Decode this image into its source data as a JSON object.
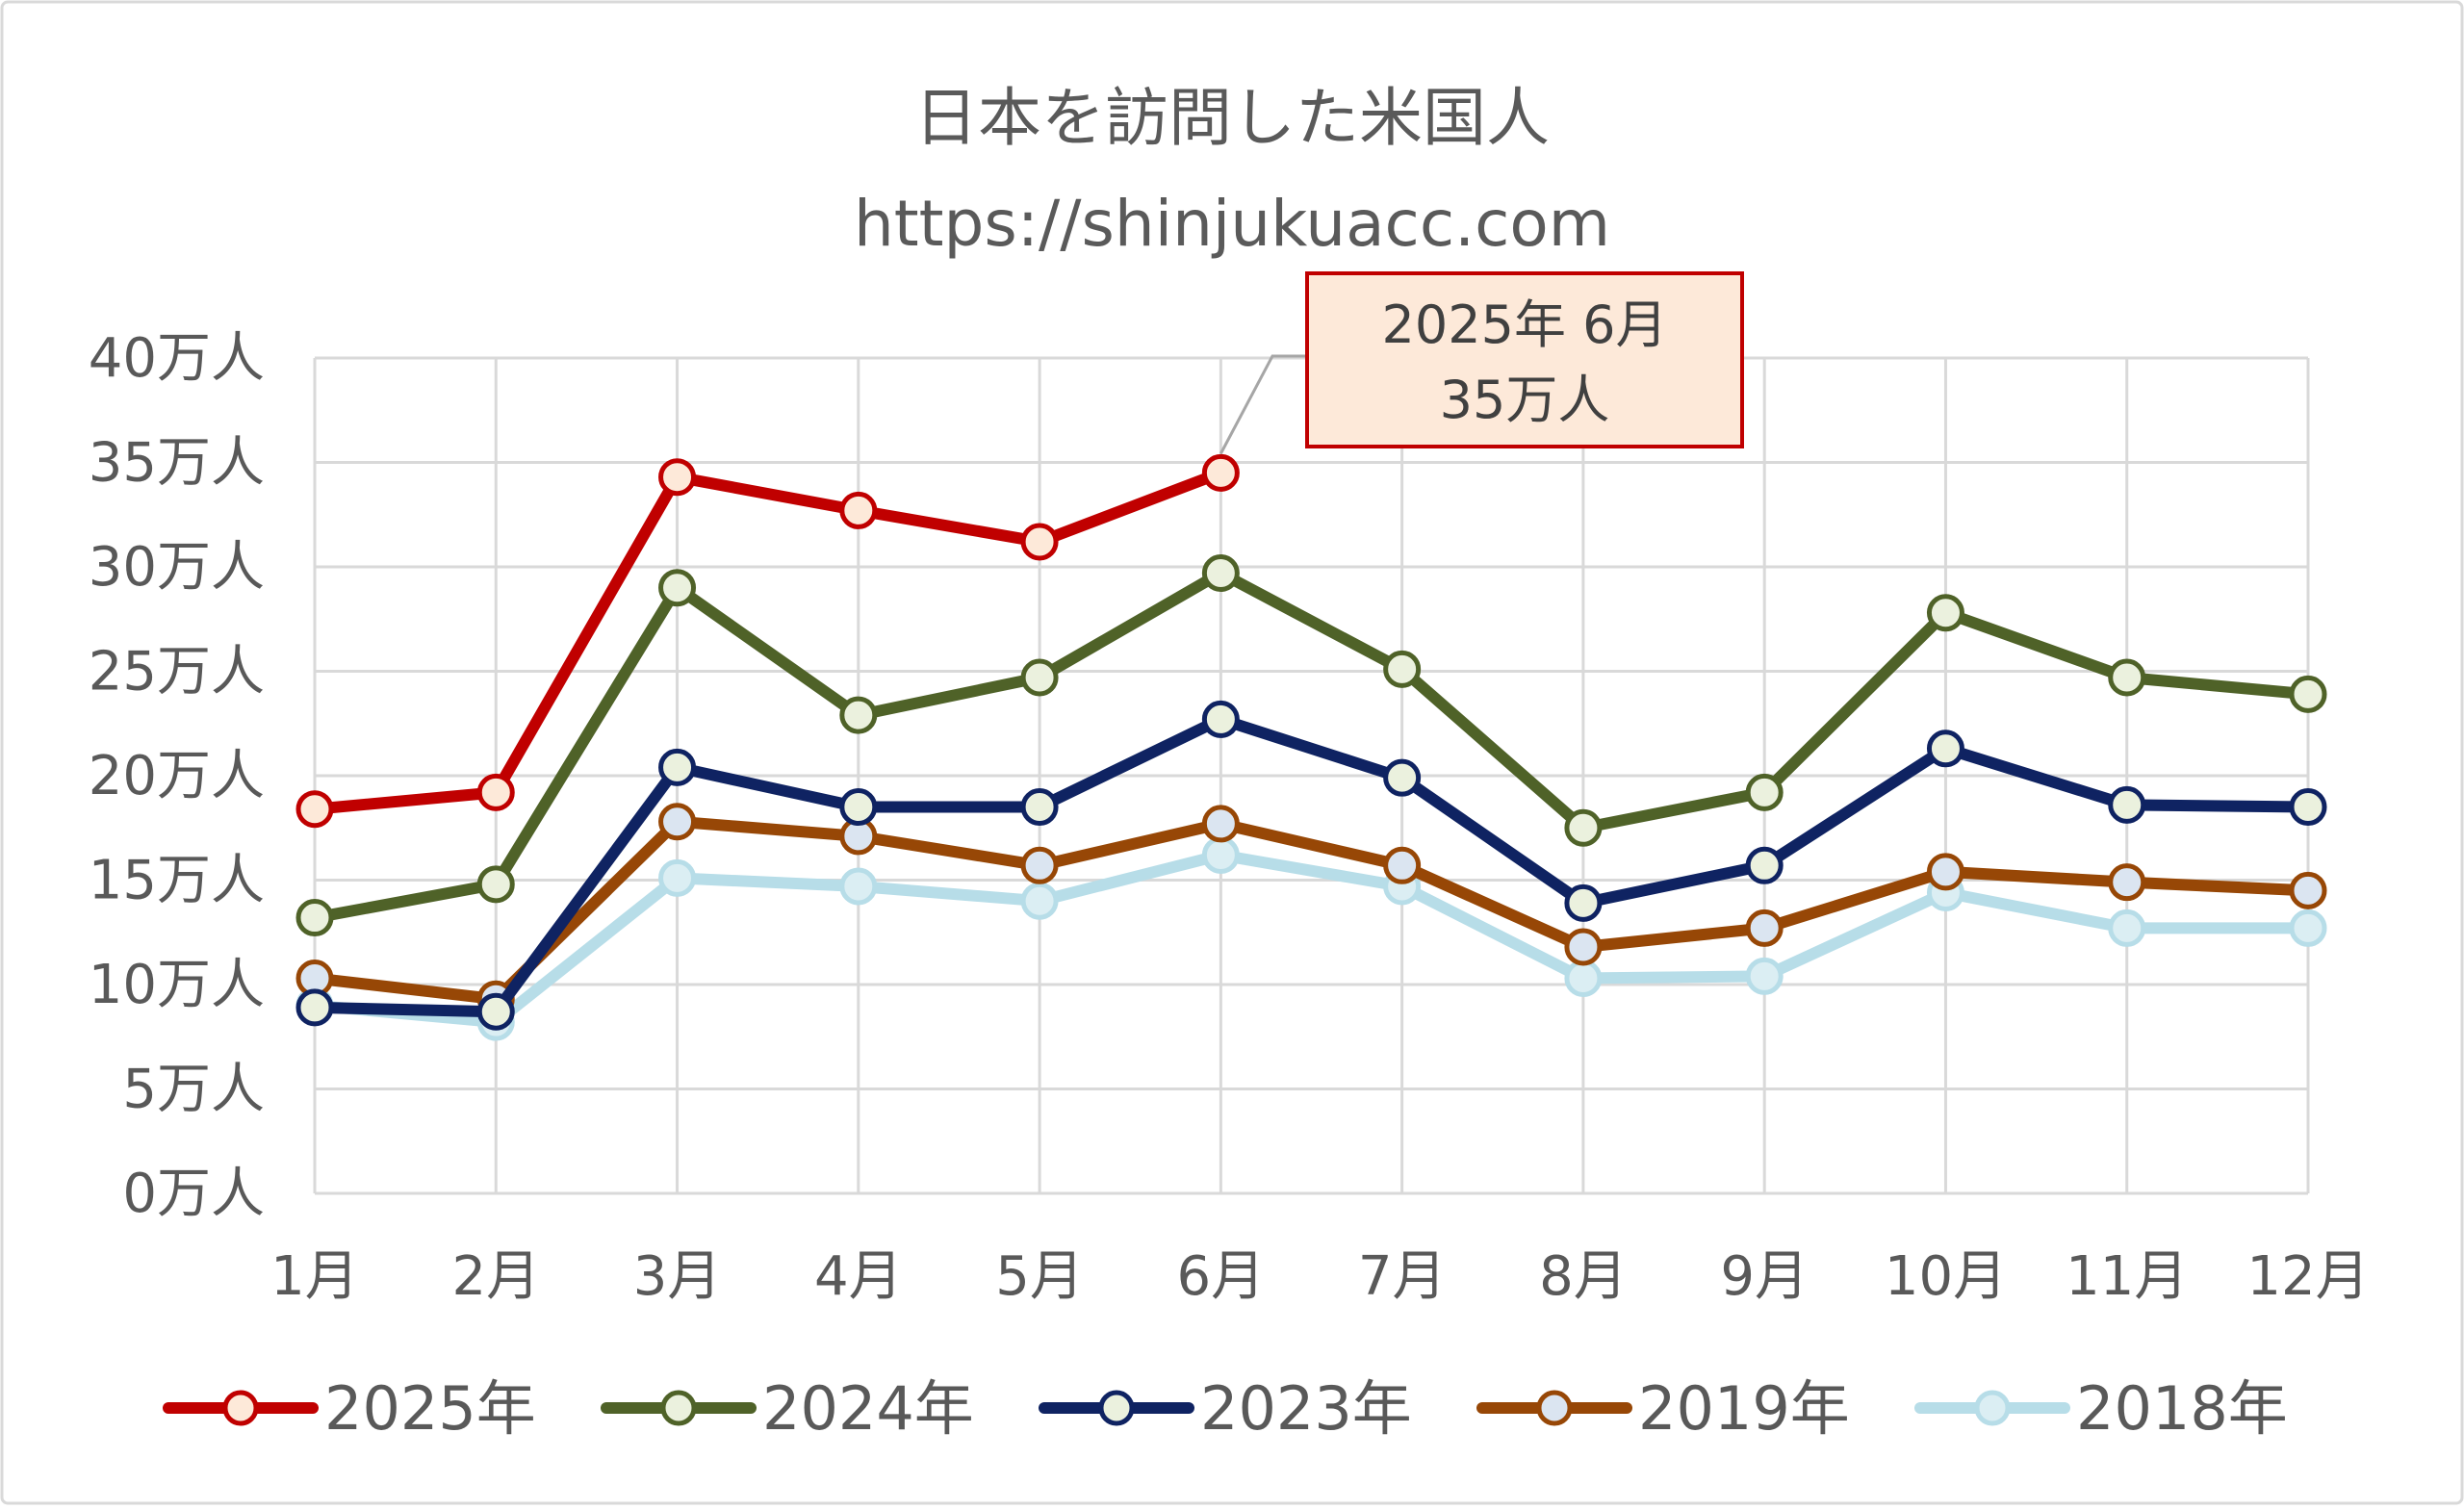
{
  "chart_data": {
    "type": "line",
    "title": "日本を訪問した米国人",
    "subtitle": "https://shinjukuacc.com",
    "xlabel": "",
    "ylabel": "",
    "categories": [
      "1月",
      "2月",
      "3月",
      "4月",
      "5月",
      "6月",
      "7月",
      "8月",
      "9月",
      "10月",
      "11月",
      "12月"
    ],
    "y_ticks": [
      "0万人",
      "5万人",
      "10万人",
      "15万人",
      "20万人",
      "25万人",
      "30万人",
      "35万人",
      "40万人"
    ],
    "ylim": [
      0,
      40
    ],
    "y_unit": "万人",
    "grid": true,
    "legend_position": "bottom",
    "series": [
      {
        "name": "2025年",
        "color": "#c00000",
        "marker_fill": "#fde9d9",
        "values": [
          18.4,
          19.2,
          34.3,
          32.7,
          31.2,
          34.5,
          null,
          null,
          null,
          null,
          null,
          null
        ]
      },
      {
        "name": "2024年",
        "color": "#4f6228",
        "marker_fill": "#ebf1de",
        "values": [
          13.2,
          14.8,
          29.0,
          22.9,
          24.7,
          29.7,
          25.1,
          17.5,
          19.2,
          27.8,
          24.7,
          23.9
        ]
      },
      {
        "name": "2023年",
        "color": "#0f2362",
        "marker_fill": "#ebf1de",
        "values": [
          8.9,
          8.7,
          20.4,
          18.5,
          18.5,
          22.7,
          19.9,
          13.9,
          15.7,
          21.3,
          18.6,
          18.5
        ]
      },
      {
        "name": "2019年",
        "color": "#974706",
        "marker_fill": "#dbe5f1",
        "values": [
          10.3,
          9.3,
          17.8,
          17.1,
          15.7,
          17.7,
          15.7,
          11.8,
          12.7,
          15.4,
          14.9,
          14.5
        ]
      },
      {
        "name": "2018年",
        "color": "#b7dde8",
        "marker_fill": "#dbeef3",
        "values": [
          9.0,
          8.2,
          15.1,
          14.7,
          14.0,
          16.2,
          14.7,
          10.3,
          10.4,
          14.4,
          12.7,
          12.7
        ]
      }
    ],
    "annotation": {
      "line1": "2025年 6月",
      "line2": "35万人",
      "series_index": 0,
      "point_index": 5,
      "border_color": "#c00000",
      "fill_color": "#fde9d9"
    }
  }
}
